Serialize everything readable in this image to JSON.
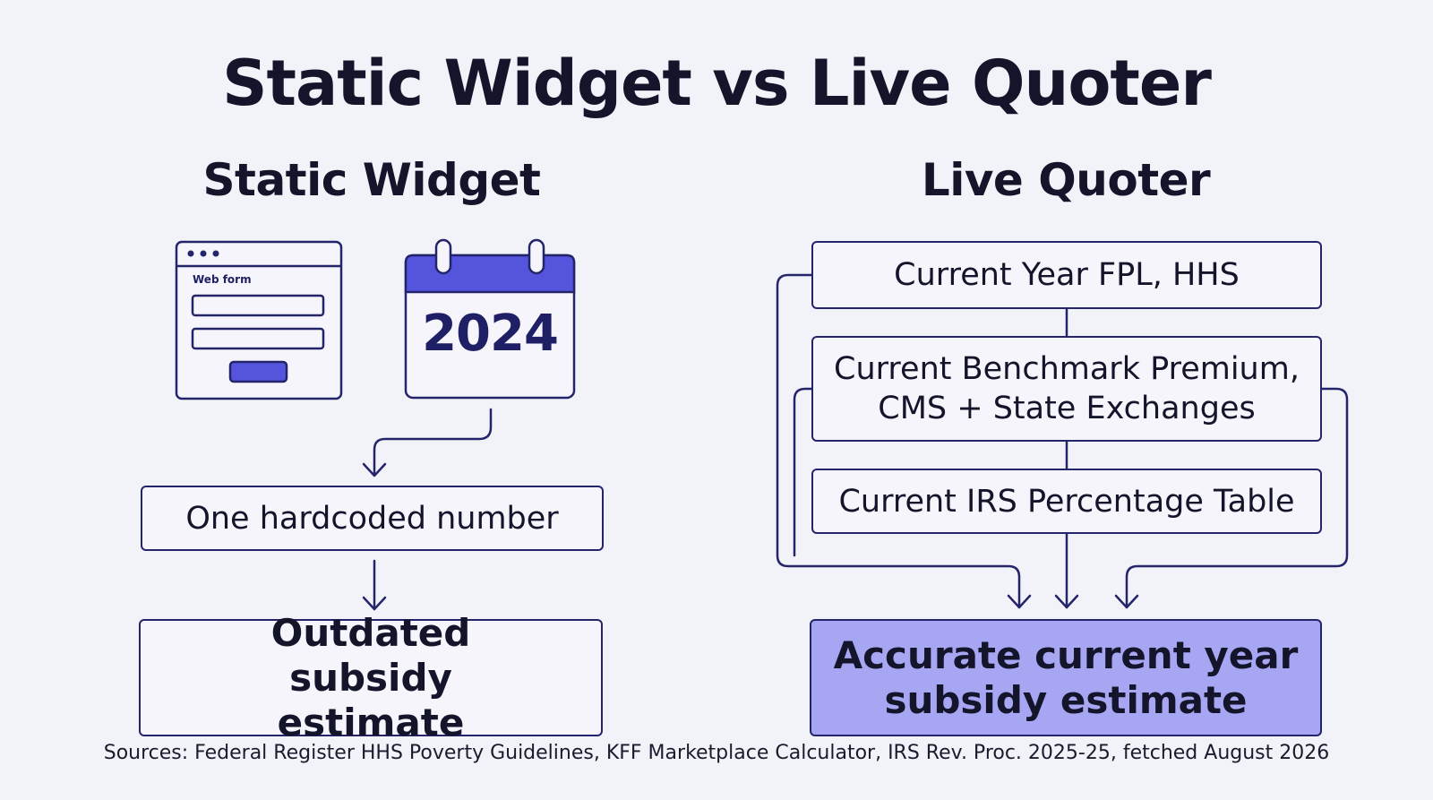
{
  "title": "Static Widget vs Live Quoter",
  "left": {
    "heading": "Static Widget",
    "icons": {
      "web_form": {
        "icon": "browser-web-form-icon",
        "label": "Web form"
      },
      "calendar": {
        "icon": "calendar-icon",
        "year": "2024"
      }
    },
    "step1": "One hardcoded number",
    "result": "Outdated subsidy estimate"
  },
  "right": {
    "heading": "Live Quoter",
    "sources": [
      {
        "label": "Current Year FPL, HHS"
      },
      {
        "label_line1": "Current Benchmark Premium,",
        "label_line2": "CMS + State Exchanges"
      },
      {
        "label": "Current IRS Percentage Table"
      }
    ],
    "result_line1": "Accurate current year",
    "result_line2": "subsidy estimate"
  },
  "footer": "Sources: Federal Register HHS Poverty Guidelines, KFF Marketplace Calculator, IRS Rev. Proc. 2025-25, fetched August 2026",
  "colors": {
    "background": "#f2f2f9",
    "ink": "#24246a",
    "accent": "#5454dc",
    "highlight": "#a6a6f3"
  }
}
